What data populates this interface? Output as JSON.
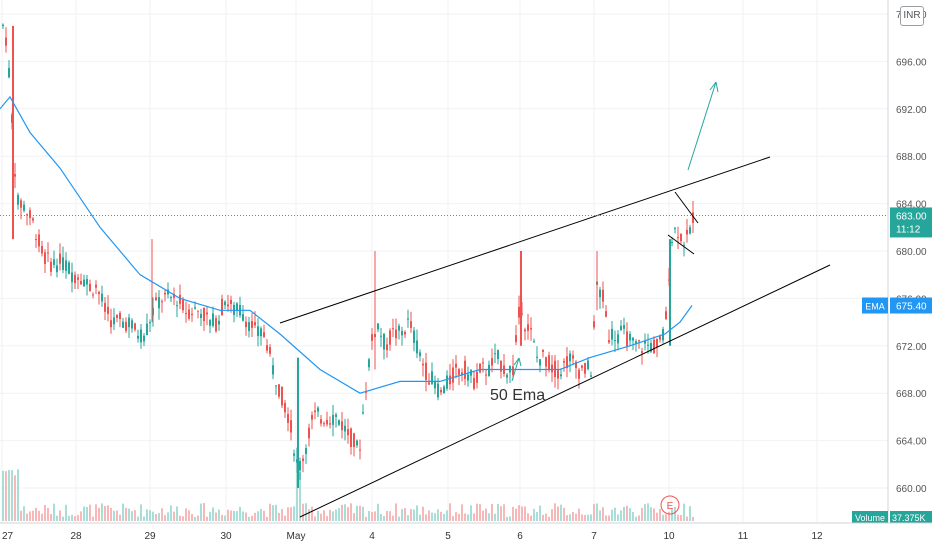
{
  "chart_data": {
    "type": "candlestick",
    "currency": "INR",
    "y_axis": {
      "ticks": [
        "700.00",
        "696.00",
        "692.00",
        "688.00",
        "684.00",
        "680.00",
        "676.00",
        "672.00",
        "668.00",
        "664.00",
        "660.00"
      ],
      "tick_values": [
        700,
        696,
        692,
        688,
        684,
        680,
        676,
        672,
        668,
        664,
        660
      ]
    },
    "x_axis": {
      "ticks": [
        "27",
        "28",
        "29",
        "30",
        "May",
        "4",
        "5",
        "6",
        "7",
        "10",
        "11",
        "12"
      ]
    },
    "last_price": {
      "value": "683.00",
      "countdown": "11:12"
    },
    "ema": {
      "label": "EMA",
      "value": "675.40",
      "period_note": "50 Ema"
    },
    "volume": {
      "label": "Volume",
      "value": "37.375K"
    },
    "event_marker": "E",
    "colors": {
      "up": "#26a69a",
      "down": "#ef5350",
      "ema": "#2196f3",
      "trendline": "#000000",
      "projection": "#26a69a",
      "last_price": "#26a69a"
    },
    "annotations": [
      "rising wedge channel (upper and lower trendlines)",
      "50 Ema arrow",
      "breakout projection arrow"
    ]
  }
}
